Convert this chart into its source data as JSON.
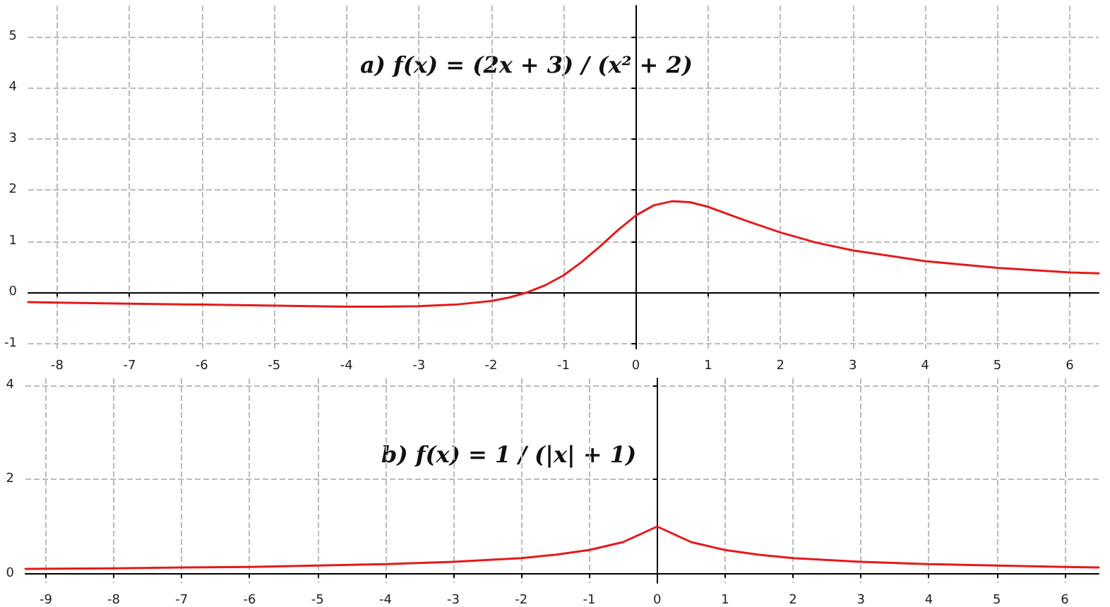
{
  "chart_data": [
    {
      "type": "line",
      "annotations": [
        "a) f(x) = (2x + 3) / (x² + 2)"
      ],
      "x": [
        -8.4,
        -8,
        -7,
        -6,
        -5,
        -4,
        -3.5,
        -3,
        -2.5,
        -2,
        -1.75,
        -1.5,
        -1.25,
        -1,
        -0.75,
        -0.5,
        -0.25,
        0,
        0.25,
        0.5,
        0.75,
        1,
        1.5,
        2,
        2.5,
        3,
        4,
        5,
        6,
        6.4
      ],
      "series": [
        {
          "color": "#e31a1c",
          "values": [
            -0.19,
            -0.2,
            -0.22,
            -0.24,
            -0.26,
            -0.28,
            -0.28,
            -0.27,
            -0.24,
            -0.17,
            -0.1,
            0,
            0.14,
            0.33,
            0.59,
            0.89,
            1.21,
            1.5,
            1.7,
            1.78,
            1.76,
            1.67,
            1.41,
            1.17,
            0.97,
            0.82,
            0.61,
            0.48,
            0.39,
            0.37
          ]
        }
      ],
      "xlim": [
        -8.4,
        6.4
      ],
      "ylim": [
        -1.1,
        5.6
      ],
      "xticks": [
        -8,
        -7,
        -6,
        -5,
        -4,
        -3,
        -2,
        -1,
        0,
        1,
        2,
        3,
        4,
        5,
        6
      ],
      "yticks": [
        -1,
        0,
        1,
        2,
        3,
        4,
        5
      ],
      "grid": true,
      "marker": "none",
      "line_style": "solid"
    },
    {
      "type": "line",
      "annotations": [
        "b) f(x) = 1 / (|x| + 1)"
      ],
      "x": [
        -9.3,
        -8,
        -7,
        -6,
        -5,
        -4,
        -3,
        -2,
        -1.5,
        -1,
        -0.5,
        0,
        0.5,
        1,
        1.5,
        2,
        3,
        4,
        5,
        6,
        6.5
      ],
      "series": [
        {
          "color": "#e31a1c",
          "values": [
            0.1,
            0.11,
            0.13,
            0.14,
            0.17,
            0.2,
            0.25,
            0.33,
            0.4,
            0.5,
            0.67,
            1,
            0.67,
            0.5,
            0.4,
            0.33,
            0.25,
            0.2,
            0.17,
            0.14,
            0.13
          ]
        }
      ],
      "xlim": [
        -9.3,
        6.5
      ],
      "ylim": [
        -0.2,
        4.15
      ],
      "xticks": [
        -9,
        -8,
        -7,
        -6,
        -5,
        -4,
        -3,
        -2,
        -1,
        0,
        1,
        2,
        3,
        4,
        5,
        6
      ],
      "yticks": [
        0,
        2,
        4
      ],
      "grid": true,
      "marker": "none",
      "line_style": "solid"
    }
  ]
}
